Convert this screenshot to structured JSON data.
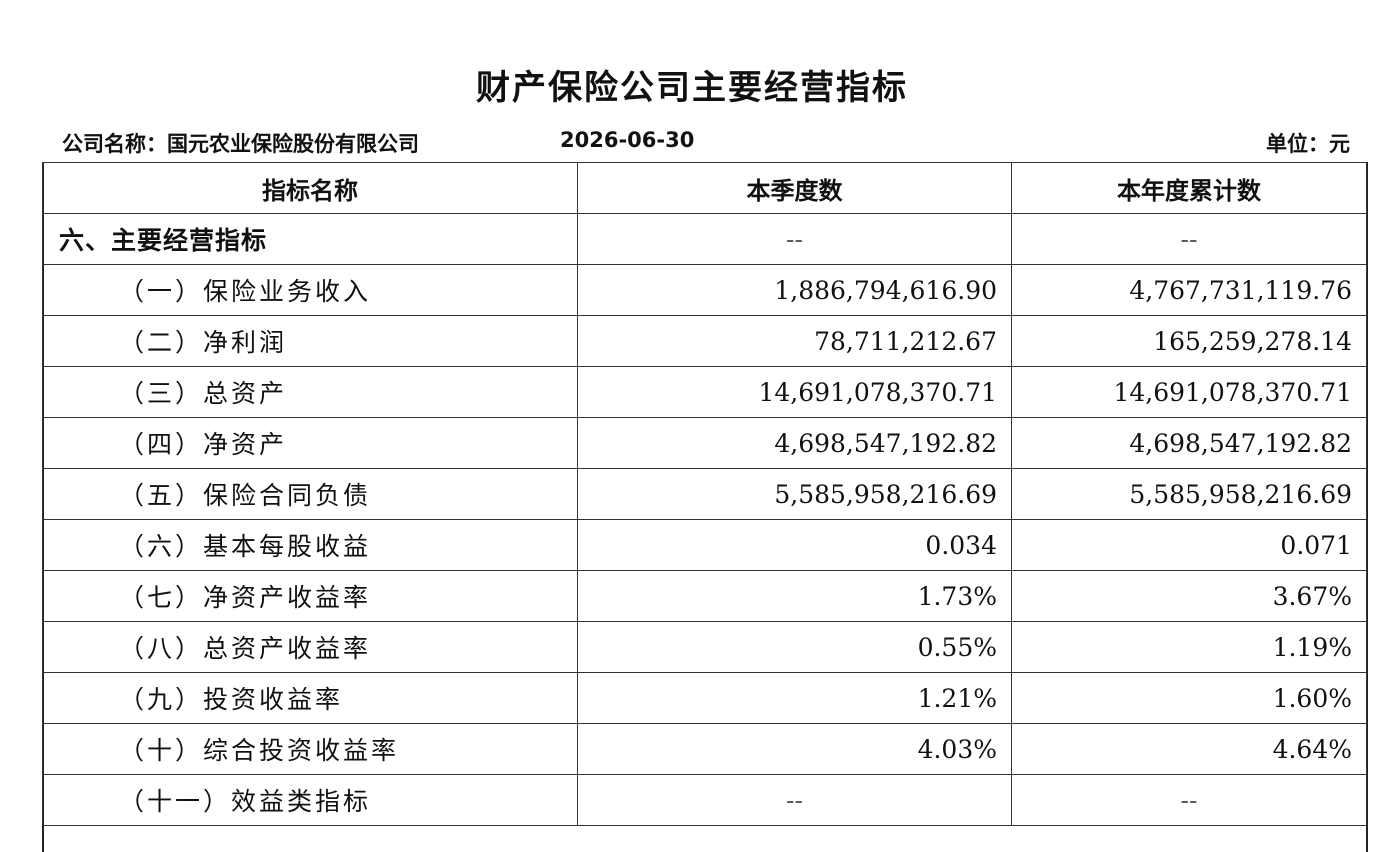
{
  "header": {
    "title": "财产保险公司主要经营指标",
    "company": "公司名称：国元农业保险股份有限公司",
    "date": "2026-06-30",
    "unit": "单位：元"
  },
  "table": {
    "columns": [
      "指标名称",
      "本季度数",
      "本年度累计数"
    ],
    "rows": [
      [
        "六、主要经营指标",
        "--",
        "--"
      ],
      [
        "（一）保险业务收入",
        "1,886,794,616.90",
        "4,767,731,119.76"
      ],
      [
        "（二）净利润",
        "78,711,212.67",
        "165,259,278.14"
      ],
      [
        "（三）总资产",
        "14,691,078,370.71",
        "14,691,078,370.71"
      ],
      [
        "（四）净资产",
        "4,698,547,192.82",
        "4,698,547,192.82"
      ],
      [
        "（五）保险合同负债",
        "5,585,958,216.69",
        "5,585,958,216.69"
      ],
      [
        "（六）基本每股收益",
        "0.034",
        "0.071"
      ],
      [
        "（七）净资产收益率",
        "1.73%",
        "3.67%"
      ],
      [
        "（八）总资产收益率",
        "0.55%",
        "1.19%"
      ],
      [
        "（九）投资收益率",
        "1.21%",
        "1.60%"
      ],
      [
        "（十）综合投资收益率",
        "4.03%",
        "4.64%"
      ],
      [
        "（十一）效益类指标",
        "--",
        "--"
      ]
    ]
  }
}
